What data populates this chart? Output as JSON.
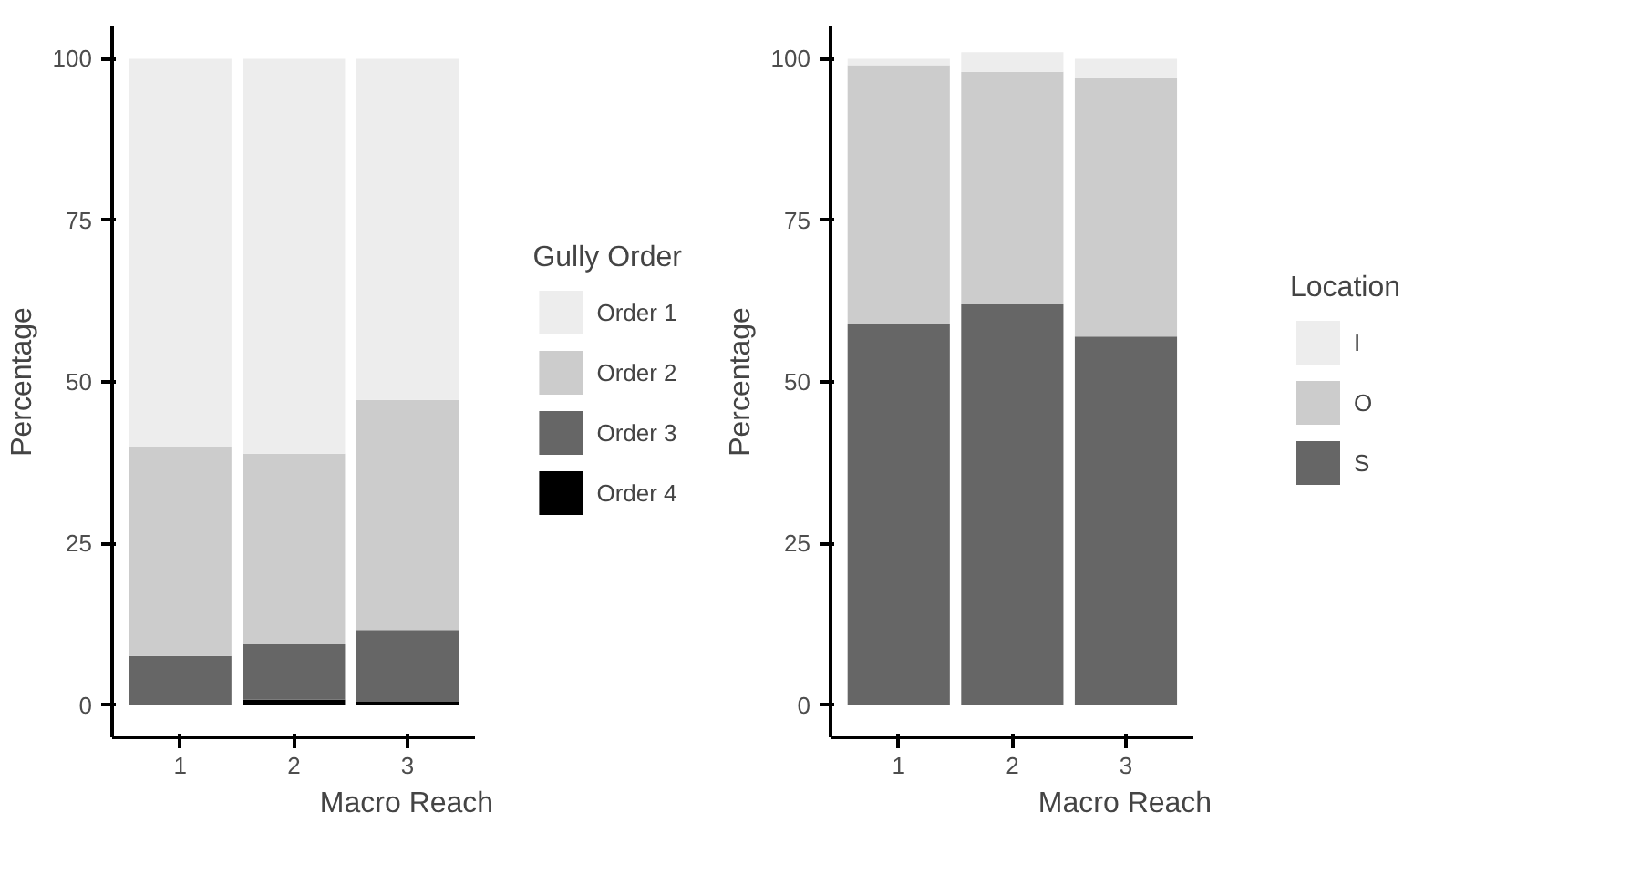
{
  "chart_data": [
    {
      "type": "bar",
      "stacked": true,
      "xlabel": "Macro Reach",
      "ylabel": "Percentage",
      "legend_title": "Gully Order",
      "legend": "right",
      "grid": false,
      "categories": [
        "1",
        "2",
        "3"
      ],
      "ylim": [
        -5,
        105
      ],
      "yticks": [
        0,
        25,
        50,
        75,
        100
      ],
      "series": [
        {
          "name": "Order 4",
          "color": "#000000",
          "values": [
            0,
            0.8,
            0.5
          ]
        },
        {
          "name": "Order 3",
          "color": "#666666",
          "values": [
            7.6,
            8.6,
            11.1
          ]
        },
        {
          "name": "Order 2",
          "color": "#cccccc",
          "values": [
            32.4,
            29.5,
            35.6
          ]
        },
        {
          "name": "Order 1",
          "color": "#ededed",
          "values": [
            60,
            61.1,
            52.8
          ]
        }
      ]
    },
    {
      "type": "bar",
      "stacked": true,
      "xlabel": "Macro Reach",
      "ylabel": "Percentage",
      "legend_title": "Location",
      "legend": "right",
      "grid": false,
      "categories": [
        "1",
        "2",
        "3"
      ],
      "ylim": [
        -5,
        105
      ],
      "yticks": [
        0,
        25,
        50,
        75,
        100
      ],
      "series": [
        {
          "name": "S",
          "color": "#666666",
          "values": [
            59,
            62,
            57
          ]
        },
        {
          "name": "O",
          "color": "#cccccc",
          "values": [
            40,
            36,
            40
          ]
        },
        {
          "name": "I",
          "color": "#ededed",
          "values": [
            1,
            3,
            3
          ]
        }
      ]
    }
  ]
}
